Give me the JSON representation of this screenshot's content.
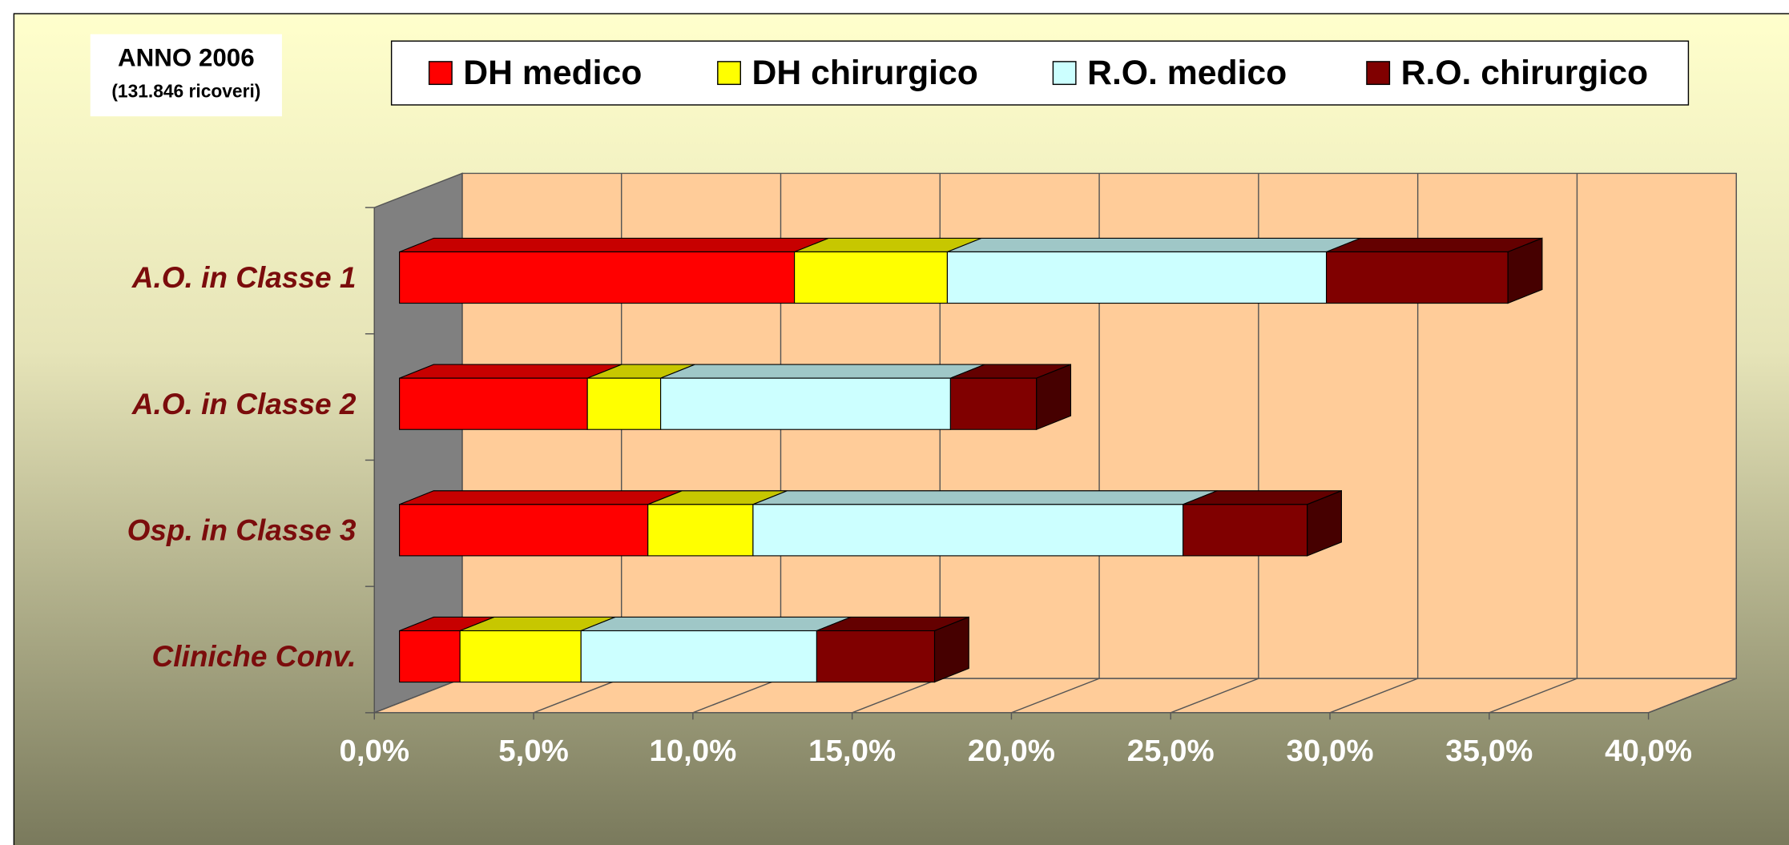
{
  "chart_data": {
    "type": "bar3d_stacked_horizontal",
    "annotations": [
      "ANNO 2006",
      "(131.846 ricoveri)"
    ],
    "categories": [
      "A.O. in Classe 1",
      "A.O.  in Classe 2",
      "Osp. in Classe 3",
      "Cliniche Conv."
    ],
    "series": [
      {
        "name": "DH medico",
        "color": "#ff0000",
        "values": [
          12.4,
          5.9,
          7.8,
          1.9
        ]
      },
      {
        "name": "DH chirurgico",
        "color": "#ffff00",
        "values": [
          4.8,
          2.3,
          3.3,
          3.8
        ]
      },
      {
        "name": "R.O. medico",
        "color": "#ccffff",
        "values": [
          11.9,
          9.1,
          13.5,
          7.4
        ]
      },
      {
        "name": "R.O. chirurgico",
        "color": "#800000",
        "values": [
          5.7,
          2.7,
          3.9,
          3.7
        ]
      }
    ],
    "xlim": [
      0,
      40
    ],
    "xticks": [
      {
        "value": 0,
        "label": "0,0%"
      },
      {
        "value": 5,
        "label": "5,0%"
      },
      {
        "value": 10,
        "label": "10,0%"
      },
      {
        "value": 15,
        "label": "15,0%"
      },
      {
        "value": 20,
        "label": "20,0%"
      },
      {
        "value": 25,
        "label": "25,0%"
      },
      {
        "value": 30,
        "label": "30,0%"
      },
      {
        "value": 35,
        "label": "35,0%"
      },
      {
        "value": 40,
        "label": "40,0%"
      }
    ],
    "grid": true,
    "legend": "top"
  }
}
